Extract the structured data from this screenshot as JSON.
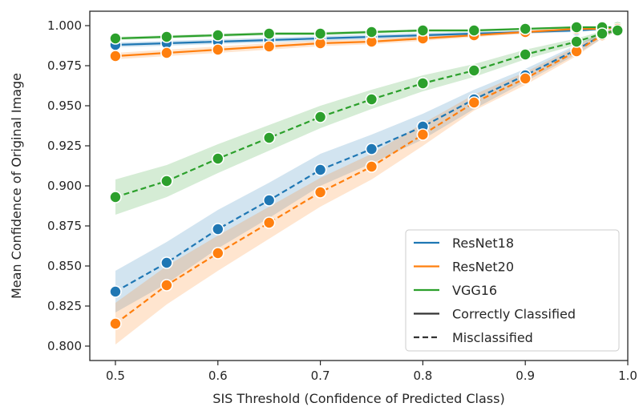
{
  "chart_data": {
    "type": "line",
    "xlabel": "SIS Threshold (Confidence of Predicted Class)",
    "ylabel": "Mean Confidence of Original Image",
    "xlim": [
      0.475,
      1.0
    ],
    "ylim": [
      0.791,
      1.009
    ],
    "xticks": [
      "0.5",
      "0.6",
      "0.7",
      "0.8",
      "0.9",
      "1.0"
    ],
    "xtick_values": [
      0.5,
      0.6,
      0.7,
      0.8,
      0.9,
      1.0
    ],
    "yticks": [
      "0.800",
      "0.825",
      "0.850",
      "0.875",
      "0.900",
      "0.925",
      "0.950",
      "0.975",
      "1.000"
    ],
    "ytick_values": [
      0.8,
      0.825,
      0.85,
      0.875,
      0.9,
      0.925,
      0.95,
      0.975,
      1.0
    ],
    "grid": false,
    "legend_position": "lower-right",
    "x": [
      0.5,
      0.55,
      0.6,
      0.65,
      0.7,
      0.75,
      0.8,
      0.85,
      0.9,
      0.95,
      0.975,
      0.99
    ],
    "series": [
      {
        "key": "resnet18-correct",
        "color": "#1f77b4",
        "dash": false,
        "values": [
          0.988,
          0.989,
          0.99,
          0.991,
          0.992,
          0.993,
          0.994,
          0.995,
          0.996,
          0.997,
          0.998,
          0.999
        ],
        "band": [
          0.0015,
          0.0015,
          0.0015,
          0.0015,
          0.0015,
          0.0015,
          0.0015,
          0.0012,
          0.001,
          0.001,
          0.0008,
          0.0005
        ]
      },
      {
        "key": "resnet20-correct",
        "color": "#ff7f0e",
        "dash": false,
        "values": [
          0.981,
          0.983,
          0.985,
          0.987,
          0.989,
          0.99,
          0.992,
          0.994,
          0.996,
          0.998,
          0.998,
          0.999
        ],
        "band": [
          0.002,
          0.002,
          0.002,
          0.002,
          0.0018,
          0.0016,
          0.0015,
          0.0012,
          0.001,
          0.001,
          0.0008,
          0.0005
        ]
      },
      {
        "key": "vgg16-correct",
        "color": "#2ca02c",
        "dash": false,
        "values": [
          0.992,
          0.993,
          0.994,
          0.995,
          0.995,
          0.996,
          0.997,
          0.997,
          0.998,
          0.999,
          0.999,
          0.999
        ],
        "band": [
          0.001,
          0.001,
          0.001,
          0.001,
          0.001,
          0.001,
          0.0008,
          0.0008,
          0.0006,
          0.0005,
          0.0004,
          0.0003
        ]
      },
      {
        "key": "resnet18-misclassified",
        "color": "#1f77b4",
        "dash": true,
        "values": [
          0.834,
          0.852,
          0.873,
          0.891,
          0.91,
          0.923,
          0.937,
          0.954,
          0.969,
          0.985,
          0.994,
          0.998
        ],
        "band": [
          0.013,
          0.013,
          0.012,
          0.011,
          0.01,
          0.009,
          0.008,
          0.006,
          0.004,
          0.003,
          0.002,
          0.001
        ]
      },
      {
        "key": "resnet20-misclassified",
        "color": "#ff7f0e",
        "dash": true,
        "values": [
          0.814,
          0.838,
          0.858,
          0.877,
          0.896,
          0.912,
          0.932,
          0.952,
          0.967,
          0.984,
          0.994,
          0.998
        ],
        "band": [
          0.013,
          0.012,
          0.011,
          0.01,
          0.009,
          0.008,
          0.007,
          0.005,
          0.004,
          0.003,
          0.002,
          0.001
        ]
      },
      {
        "key": "vgg16-misclassified",
        "color": "#2ca02c",
        "dash": true,
        "values": [
          0.893,
          0.903,
          0.917,
          0.93,
          0.943,
          0.954,
          0.964,
          0.972,
          0.982,
          0.99,
          0.995,
          0.997
        ],
        "band": [
          0.011,
          0.01,
          0.009,
          0.008,
          0.007,
          0.006,
          0.005,
          0.004,
          0.003,
          0.002,
          0.0015,
          0.001
        ]
      }
    ],
    "legend": [
      {
        "label": "ResNet18",
        "color": "#1f77b4",
        "dash": false
      },
      {
        "label": "ResNet20",
        "color": "#ff7f0e",
        "dash": false
      },
      {
        "label": "VGG16",
        "color": "#2ca02c",
        "dash": false
      },
      {
        "label": "Correctly Classified",
        "color": "#333333",
        "dash": false
      },
      {
        "label": "Misclassified",
        "color": "#333333",
        "dash": true
      }
    ]
  }
}
